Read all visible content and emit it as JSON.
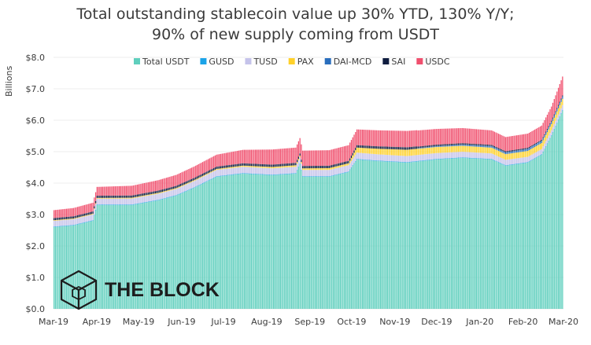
{
  "title_line1": "Total outstanding stablecoin value up 30% YTD, 130% Y/Y;",
  "title_line2": "90% of new supply coming from USDT",
  "watermark": {
    "text": "THE BLOCK",
    "icon": "cube-logo-icon"
  },
  "chart_data": {
    "type": "bar",
    "stacked": true,
    "ylabel": "Billions",
    "xlabel": "",
    "ylim": [
      0,
      8
    ],
    "yticks": [
      "$0.0",
      "$1.0",
      "$2.0",
      "$3.0",
      "$4.0",
      "$5.0",
      "$6.0",
      "$7.0",
      "$8.0"
    ],
    "xticks": [
      "Mar-19",
      "Apr-19",
      "May-19",
      "Jun-19",
      "Jul-19",
      "Aug-19",
      "Sep-19",
      "Oct-19",
      "Nov-19",
      "Dec-19",
      "Jan-20",
      "Feb-20",
      "Mar-20"
    ],
    "legend_position": "top",
    "x_start": "2019-03-01",
    "x_end": "2020-03-01",
    "series": [
      {
        "name": "Total USDT",
        "color": "#5fcfbd",
        "points": [
          [
            "2019-03-01",
            2.6
          ],
          [
            "2019-03-15",
            2.65
          ],
          [
            "2019-03-29",
            2.8
          ],
          [
            "2019-04-01",
            3.3
          ],
          [
            "2019-04-26",
            3.3
          ],
          [
            "2019-05-15",
            3.45
          ],
          [
            "2019-05-28",
            3.6
          ],
          [
            "2019-06-10",
            3.85
          ],
          [
            "2019-06-26",
            4.2
          ],
          [
            "2019-07-15",
            4.3
          ],
          [
            "2019-08-05",
            4.25
          ],
          [
            "2019-08-22",
            4.3
          ],
          [
            "2019-08-25",
            4.6
          ],
          [
            "2019-08-27",
            4.2
          ],
          [
            "2019-09-15",
            4.2
          ],
          [
            "2019-09-29",
            4.35
          ],
          [
            "2019-10-05",
            4.75
          ],
          [
            "2019-10-20",
            4.7
          ],
          [
            "2019-11-10",
            4.65
          ],
          [
            "2019-12-01",
            4.75
          ],
          [
            "2019-12-20",
            4.8
          ],
          [
            "2020-01-10",
            4.75
          ],
          [
            "2020-01-20",
            4.55
          ],
          [
            "2020-02-05",
            4.65
          ],
          [
            "2020-02-15",
            4.9
          ],
          [
            "2020-02-22",
            5.5
          ],
          [
            "2020-03-01",
            6.3
          ]
        ]
      },
      {
        "name": "GUSD",
        "color": "#1aa3e8",
        "points": [
          [
            "2019-03-01",
            0.02
          ],
          [
            "2020-03-01",
            0.02
          ]
        ]
      },
      {
        "name": "TUSD",
        "color": "#c5c3ea",
        "points": [
          [
            "2019-03-01",
            0.18
          ],
          [
            "2019-06-26",
            0.2
          ],
          [
            "2019-10-05",
            0.2
          ],
          [
            "2020-03-01",
            0.16
          ]
        ]
      },
      {
        "name": "PAX",
        "color": "#ffd12a",
        "points": [
          [
            "2019-03-01",
            0.02
          ],
          [
            "2019-06-26",
            0.03
          ],
          [
            "2019-09-29",
            0.06
          ],
          [
            "2019-10-05",
            0.16
          ],
          [
            "2019-11-10",
            0.2
          ],
          [
            "2020-01-20",
            0.18
          ],
          [
            "2020-03-01",
            0.2
          ]
        ]
      },
      {
        "name": "DAI-MCD",
        "color": "#2a6ebd",
        "points": [
          [
            "2019-03-01",
            0.0
          ],
          [
            "2019-11-17",
            0.0
          ],
          [
            "2019-11-18",
            0.02
          ],
          [
            "2020-03-01",
            0.08
          ]
        ]
      },
      {
        "name": "SAI",
        "color": "#0f1c3f",
        "points": [
          [
            "2019-03-01",
            0.07
          ],
          [
            "2019-11-17",
            0.08
          ],
          [
            "2019-11-18",
            0.05
          ],
          [
            "2020-03-01",
            0.03
          ]
        ]
      },
      {
        "name": "USDC",
        "color": "#f0506e",
        "points": [
          [
            "2019-03-01",
            0.25
          ],
          [
            "2019-04-01",
            0.28
          ],
          [
            "2019-06-26",
            0.38
          ],
          [
            "2019-08-05",
            0.48
          ],
          [
            "2019-10-05",
            0.5
          ],
          [
            "2019-11-10",
            0.52
          ],
          [
            "2020-01-20",
            0.45
          ],
          [
            "2020-02-22",
            0.45
          ],
          [
            "2020-03-01",
            0.6
          ]
        ]
      }
    ]
  }
}
